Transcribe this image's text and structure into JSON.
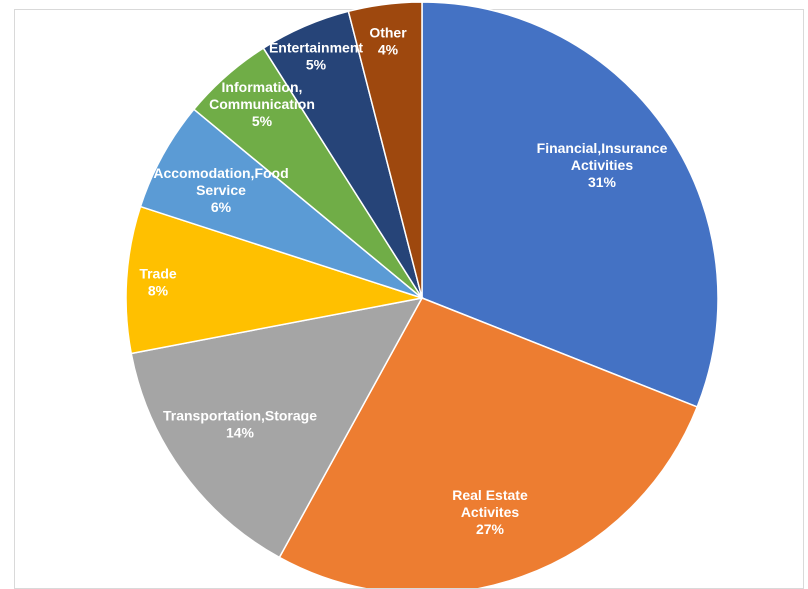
{
  "chart_data": {
    "type": "pie",
    "title": "",
    "start_angle_deg": 0,
    "direction": "clockwise",
    "slices": [
      {
        "label_lines": [
          "Financial,Insurance",
          "Activities",
          "31%"
        ],
        "value": 31,
        "color": "#4472C4"
      },
      {
        "label_lines": [
          "Real Estate",
          "Activites",
          "27%"
        ],
        "value": 27,
        "color": "#ED7D31"
      },
      {
        "label_lines": [
          "Transportation,Storage",
          "14%"
        ],
        "value": 14,
        "color": "#A5A5A5"
      },
      {
        "label_lines": [
          "Trade",
          "8%"
        ],
        "value": 8,
        "color": "#FFC000"
      },
      {
        "label_lines": [
          "Accomodation,Food",
          "Service",
          "6%"
        ],
        "value": 6,
        "color": "#5B9BD5"
      },
      {
        "label_lines": [
          "Information,",
          "Communication",
          "5%"
        ],
        "value": 5,
        "color": "#70AD47"
      },
      {
        "label_lines": [
          "Entertainment",
          "5%"
        ],
        "value": 5,
        "color": "#264478"
      },
      {
        "label_lines": [
          "Other",
          "4%"
        ],
        "value": 4,
        "color": "#9E480E"
      }
    ]
  }
}
